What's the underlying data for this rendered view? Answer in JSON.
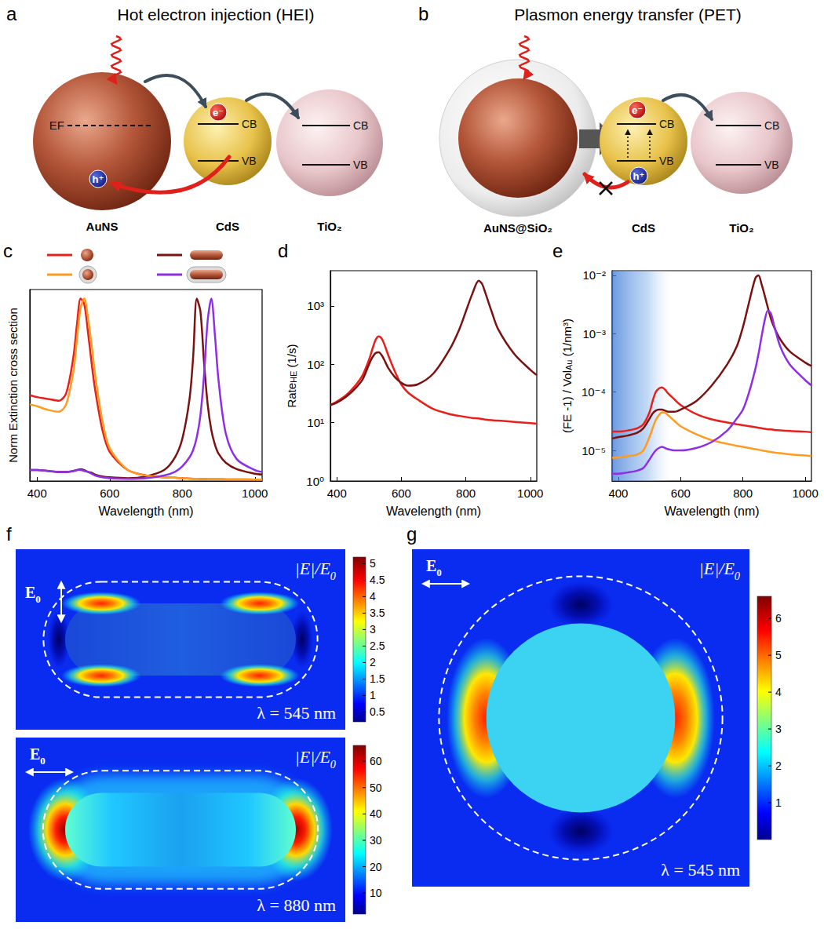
{
  "diagrams": [
    {
      "label": "a",
      "title": "Hot electron injection (HEI)",
      "particles": [
        {
          "name": "AuNS",
          "level": "EF"
        },
        {
          "name": "CdS",
          "bands": [
            "CB",
            "VB"
          ]
        },
        {
          "name": "TiO₂",
          "bands": [
            "CB",
            "VB"
          ]
        }
      ],
      "electron": "e⁻",
      "hole": "h⁺"
    },
    {
      "label": "b",
      "title": "Plasmon energy transfer (PET)",
      "particles": [
        {
          "name": "AuNS@SiO₂"
        },
        {
          "name": "CdS",
          "bands": [
            "CB",
            "VB"
          ]
        },
        {
          "name": "TiO₂",
          "bands": [
            "CB",
            "VB"
          ]
        }
      ],
      "electron": "e⁻",
      "hole": "h⁺"
    }
  ],
  "chart_data": [
    {
      "label": "c",
      "type": "line",
      "xlabel": "Wavelength (nm)",
      "ylabel": {
        "text": "Norm Extinction cross section"
      },
      "x": [
        380,
        400,
        430,
        460,
        480,
        500,
        510,
        520,
        530,
        540,
        550,
        560,
        580,
        600,
        650,
        700,
        750,
        780,
        800,
        820,
        830,
        840,
        850,
        860,
        870,
        880,
        890,
        900,
        920,
        950,
        1000,
        1020
      ],
      "xlim": [
        380,
        1020
      ],
      "xticks": [
        400,
        600,
        800,
        1000
      ],
      "ylim": [
        0,
        1.05
      ],
      "tick_labels": "x",
      "legend": "top",
      "series": [
        {
          "color": "#e8201c",
          "marker": "sphere",
          "values": [
            0.47,
            0.46,
            0.45,
            0.44,
            0.48,
            0.68,
            0.86,
            1.0,
            0.97,
            0.82,
            0.65,
            0.5,
            0.28,
            0.16,
            0.06,
            0.03,
            0.02,
            0.018,
            0.015,
            0.013,
            0.012,
            0.012,
            0.011,
            0.011,
            0.01,
            0.01,
            0.01,
            0.01,
            0.009,
            0.009,
            0.008,
            0.007
          ]
        },
        {
          "color": "#7b1212",
          "marker": "rod",
          "values": [
            0.06,
            0.06,
            0.055,
            0.05,
            0.05,
            0.055,
            0.06,
            0.065,
            0.06,
            0.05,
            0.045,
            0.035,
            0.025,
            0.02,
            0.015,
            0.025,
            0.06,
            0.13,
            0.23,
            0.45,
            0.68,
            1.0,
            0.93,
            0.65,
            0.42,
            0.28,
            0.2,
            0.15,
            0.1,
            0.065,
            0.04,
            0.035
          ]
        },
        {
          "color": "#ff9b1f",
          "marker": "coated_sphere",
          "values": [
            0.42,
            0.41,
            0.39,
            0.38,
            0.42,
            0.6,
            0.78,
            0.95,
            1.0,
            0.9,
            0.75,
            0.58,
            0.33,
            0.18,
            0.06,
            0.03,
            0.02,
            0.017,
            0.015,
            0.013,
            0.012,
            0.012,
            0.011,
            0.011,
            0.01,
            0.01,
            0.01,
            0.01,
            0.009,
            0.009,
            0.008,
            0.007
          ]
        },
        {
          "color": "#8e2fe8",
          "marker": "coated_rod",
          "values": [
            0.06,
            0.06,
            0.055,
            0.05,
            0.05,
            0.055,
            0.06,
            0.06,
            0.055,
            0.05,
            0.04,
            0.03,
            0.02,
            0.015,
            0.012,
            0.015,
            0.03,
            0.05,
            0.08,
            0.13,
            0.17,
            0.24,
            0.36,
            0.58,
            0.88,
            1.0,
            0.8,
            0.55,
            0.26,
            0.12,
            0.06,
            0.05
          ]
        }
      ]
    },
    {
      "label": "d",
      "type": "line",
      "log": "y",
      "xlabel": "Wavelength (nm)",
      "ylabel": {
        "text": "Rate",
        "sub": "HE",
        "tail": " (1/s)"
      },
      "x": [
        380,
        400,
        430,
        460,
        480,
        500,
        510,
        520,
        530,
        540,
        550,
        560,
        580,
        600,
        620,
        650,
        700,
        750,
        780,
        800,
        820,
        840,
        850,
        860,
        880,
        900,
        950,
        1000,
        1020
      ],
      "xlim": [
        380,
        1020
      ],
      "xticks": [
        400,
        600,
        800,
        1000
      ],
      "ylim": [
        1,
        4000
      ],
      "yticks": [
        {
          "value": 1,
          "label": "10⁰"
        },
        {
          "value": 10,
          "label": "10¹"
        },
        {
          "value": 100,
          "label": "10²"
        },
        {
          "value": 1000,
          "label": "10³"
        }
      ],
      "series": [
        {
          "color": "#e8201c",
          "values": [
            20,
            23,
            30,
            45,
            65,
            120,
            180,
            260,
            300,
            270,
            200,
            140,
            75,
            45,
            33,
            25,
            17,
            14,
            13,
            12.5,
            12,
            11.8,
            11.5,
            11.3,
            11,
            10.8,
            10.3,
            9.8,
            9.6
          ]
        },
        {
          "color": "#7b1212",
          "values": [
            20,
            22,
            28,
            40,
            55,
            100,
            130,
            155,
            160,
            140,
            110,
            85,
            60,
            48,
            43,
            45,
            70,
            180,
            400,
            800,
            1600,
            2700,
            2400,
            1700,
            800,
            400,
            150,
            80,
            65
          ]
        }
      ]
    },
    {
      "label": "e",
      "type": "line",
      "log": "y",
      "xlabel": "Wavelength (nm)",
      "ylabel": {
        "text": "(FE -1) / Vol",
        "sub": "Au",
        "tail": " (1/nm³)"
      },
      "x": [
        380,
        400,
        430,
        460,
        480,
        500,
        510,
        520,
        530,
        540,
        550,
        560,
        580,
        600,
        650,
        700,
        750,
        780,
        800,
        820,
        840,
        850,
        860,
        870,
        880,
        890,
        900,
        920,
        950,
        1000,
        1020
      ],
      "xlim": [
        380,
        1020
      ],
      "xticks": [
        400,
        600,
        800,
        1000
      ],
      "ylim": [
        3e-06,
        0.012
      ],
      "yticks": [
        {
          "value": 1e-05,
          "label": "10⁻⁵"
        },
        {
          "value": 0.0001,
          "label": "10⁻⁴"
        },
        {
          "value": 0.001,
          "label": "10⁻³"
        },
        {
          "value": 0.01,
          "label": "10⁻²"
        }
      ],
      "shaded_x": [
        380,
        570
      ],
      "series": [
        {
          "color": "#e8201c",
          "values": [
            2.1e-05,
            2.1e-05,
            2.2e-05,
            2.4e-05,
            2.8e-05,
            4.5e-05,
            7e-05,
            0.0001,
            0.000115,
            0.00012,
            0.00011,
            9.5e-05,
            7.5e-05,
            6e-05,
            4.2e-05,
            3.4e-05,
            3e-05,
            2.8e-05,
            2.7e-05,
            2.6e-05,
            2.5e-05,
            2.45e-05,
            2.4e-05,
            2.35e-05,
            2.3e-05,
            2.3e-05,
            2.25e-05,
            2.2e-05,
            2.15e-05,
            2.1e-05,
            2.05e-05
          ]
        },
        {
          "color": "#7b1212",
          "values": [
            1.6e-05,
            1.7e-05,
            1.8e-05,
            2e-05,
            2.4e-05,
            3.5e-05,
            4.3e-05,
            4.8e-05,
            5e-05,
            5e-05,
            4.8e-05,
            4.6e-05,
            4.6e-05,
            5e-05,
            7e-05,
            0.00013,
            0.0003,
            0.0006,
            0.0013,
            0.0035,
            0.009,
            0.01,
            0.007,
            0.0045,
            0.0028,
            0.0018,
            0.0013,
            0.0008,
            0.0005,
            0.00032,
            0.00028
          ]
        },
        {
          "color": "#ff9b1f",
          "values": [
            7.5e-06,
            7.6e-06,
            8e-06,
            8.5e-06,
            1e-05,
            1.7e-05,
            2.4e-05,
            3.3e-05,
            4e-05,
            4.5e-05,
            4.4e-05,
            4e-05,
            3.2e-05,
            2.6e-05,
            1.9e-05,
            1.5e-05,
            1.3e-05,
            1.2e-05,
            1.15e-05,
            1.1e-05,
            1.05e-05,
            1.03e-05,
            1e-05,
            9.8e-06,
            9.6e-06,
            9.4e-06,
            9.2e-06,
            9e-06,
            8.6e-06,
            8.2e-06,
            8e-06
          ]
        },
        {
          "color": "#8e2fe8",
          "values": [
            4e-06,
            4e-06,
            4.2e-06,
            4.5e-06,
            5e-06,
            7e-06,
            8.5e-06,
            1e-05,
            1.1e-05,
            1.15e-05,
            1.1e-05,
            1.05e-05,
            1e-05,
            1e-05,
            1.1e-05,
            1.4e-05,
            2.2e-05,
            3.5e-05,
            5e-05,
            0.0001,
            0.00025,
            0.00045,
            0.0009,
            0.0017,
            0.0025,
            0.0022,
            0.0014,
            0.0006,
            0.0003,
            0.00016,
            0.00013
          ]
        }
      ]
    }
  ],
  "field_maps": [
    {
      "label": "f",
      "maps": [
        {
          "shape": "rod",
          "field_direction": "vertical",
          "quantity": {
            "text": "|E|/E",
            "sub": "0"
          },
          "polarization": {
            "text": "E",
            "sub": "0"
          },
          "wavelength": "λ = 545 nm",
          "colorbar": {
            "range": [
              0.2,
              5.2
            ],
            "ticks": [
              0.5,
              1,
              1.5,
              2,
              2.5,
              3,
              3.5,
              4,
              4.5,
              5
            ]
          }
        },
        {
          "shape": "rod",
          "field_direction": "horizontal",
          "quantity": {
            "text": "|E|/E",
            "sub": "0"
          },
          "polarization": {
            "text": "E",
            "sub": "0"
          },
          "wavelength": "λ = 880 nm",
          "colorbar": {
            "range": [
              2,
              66
            ],
            "ticks": [
              10,
              20,
              30,
              40,
              50,
              60
            ]
          }
        }
      ]
    },
    {
      "label": "g",
      "maps": [
        {
          "shape": "sphere",
          "field_direction": "horizontal",
          "quantity": {
            "text": "|E|/E",
            "sub": "0"
          },
          "polarization": {
            "text": "E",
            "sub": "0"
          },
          "wavelength": "λ = 545 nm",
          "colorbar": {
            "range": [
              0,
              6.6
            ],
            "ticks": [
              1,
              2,
              3,
              4,
              5,
              6
            ]
          }
        }
      ]
    }
  ]
}
